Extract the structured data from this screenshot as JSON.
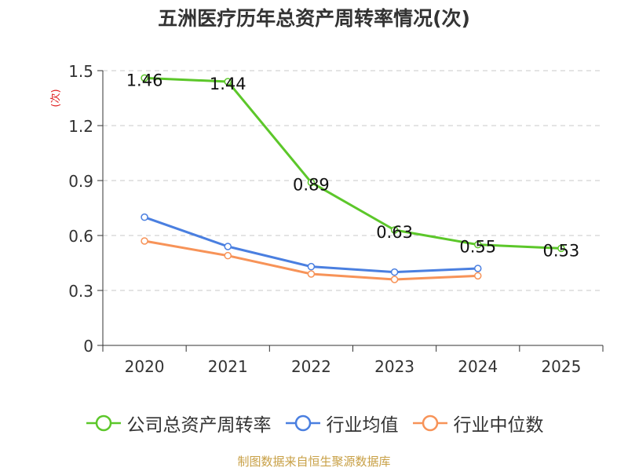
{
  "chart_data": {
    "type": "line",
    "title": "五洲医疗历年总资产周转率情况(次)",
    "ylabel": "(次)",
    "xlabel": "",
    "categories": [
      "2020",
      "2021",
      "2022",
      "2023",
      "2024",
      "2025"
    ],
    "ylim": [
      0,
      1.5
    ],
    "yticks": [
      "0",
      "0.3",
      "0.6",
      "0.9",
      "1.2",
      "1.5"
    ],
    "grid": true,
    "legend_position": "bottom",
    "series": [
      {
        "name": "公司总资产周转率",
        "color": "#5cc72a",
        "values": [
          1.46,
          1.44,
          0.89,
          0.63,
          0.55,
          0.53
        ],
        "labels": [
          "1.46",
          "1.44",
          "0.89",
          "0.63",
          "0.55",
          "0.53"
        ]
      },
      {
        "name": "行业均值",
        "color": "#4a7fe0",
        "values": [
          0.7,
          0.54,
          0.43,
          0.4,
          0.42,
          null
        ]
      },
      {
        "name": "行业中位数",
        "color": "#f79358",
        "values": [
          0.57,
          0.49,
          0.39,
          0.36,
          0.38,
          null
        ]
      }
    ]
  },
  "source": "制图数据来自恒生聚源数据库"
}
